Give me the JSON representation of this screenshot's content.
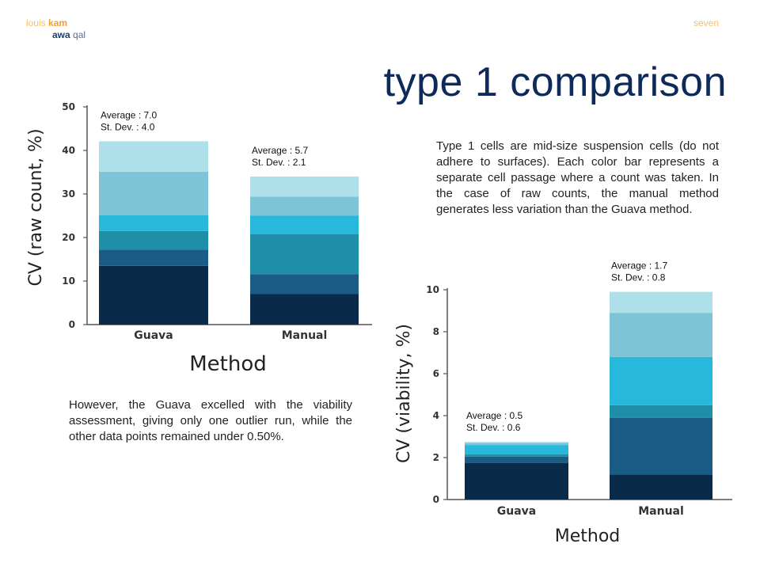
{
  "header": {
    "author_first": "louis",
    "author_last": "kam",
    "coauthor_first": "awa",
    "coauthor_last": "qal",
    "slide_label": "seven"
  },
  "title": "type 1 comparison",
  "paragraphs": {
    "top_right": "Type 1 cells are mid-size suspension cells (do not adhere to surfaces). Each color bar represents a separate cell passage where a count was taken. In the case of raw counts, the manual method generates less variation than the Guava method.",
    "bottom_left": "However, the Guava excelled with the viability assessment, giving only one outlier run, while the other data points remained under 0.50%."
  },
  "colors": {
    "segments": [
      "#0a2a4a",
      "#1a5c86",
      "#1f8ea8",
      "#27b8dc",
      "#7cc4d6",
      "#aee0ea"
    ],
    "axis": "#555555"
  },
  "chart_data": [
    {
      "type": "bar",
      "stacked": true,
      "xlabel": "Method",
      "ylabel": "CV (raw count, %)",
      "ylim": [
        0,
        50
      ],
      "yticks": [
        0,
        10,
        20,
        30,
        40,
        50
      ],
      "categories": [
        "Guava",
        "Manual"
      ],
      "stacks": [
        [
          13.5,
          3.7,
          4.3,
          3.6,
          10.0,
          7.0
        ],
        [
          7.0,
          4.6,
          9.2,
          4.2,
          4.4,
          4.6
        ]
      ],
      "annotations": [
        {
          "category": "Guava",
          "lines": [
            "Average : 7.0",
            "St. Dev. : 4.0"
          ]
        },
        {
          "category": "Manual",
          "lines": [
            "Average : 5.7",
            "St. Dev. : 2.1"
          ]
        }
      ]
    },
    {
      "type": "bar",
      "stacked": true,
      "xlabel": "Method",
      "ylabel": "CV (viability, %)",
      "ylim": [
        0,
        10
      ],
      "yticks": [
        0,
        2,
        4,
        6,
        8,
        10
      ],
      "categories": [
        "Guava",
        "Manual"
      ],
      "stacks": [
        [
          1.75,
          0.3,
          0.1,
          0.45,
          0.1,
          0.05
        ],
        [
          1.2,
          2.7,
          0.6,
          2.3,
          2.1,
          1.0
        ]
      ],
      "annotations": [
        {
          "category": "Guava",
          "lines": [
            "Average : 0.5",
            "St. Dev. : 0.6"
          ]
        },
        {
          "category": "Manual",
          "lines": [
            "Average : 1.7",
            "St. Dev. : 0.8"
          ]
        }
      ]
    }
  ]
}
